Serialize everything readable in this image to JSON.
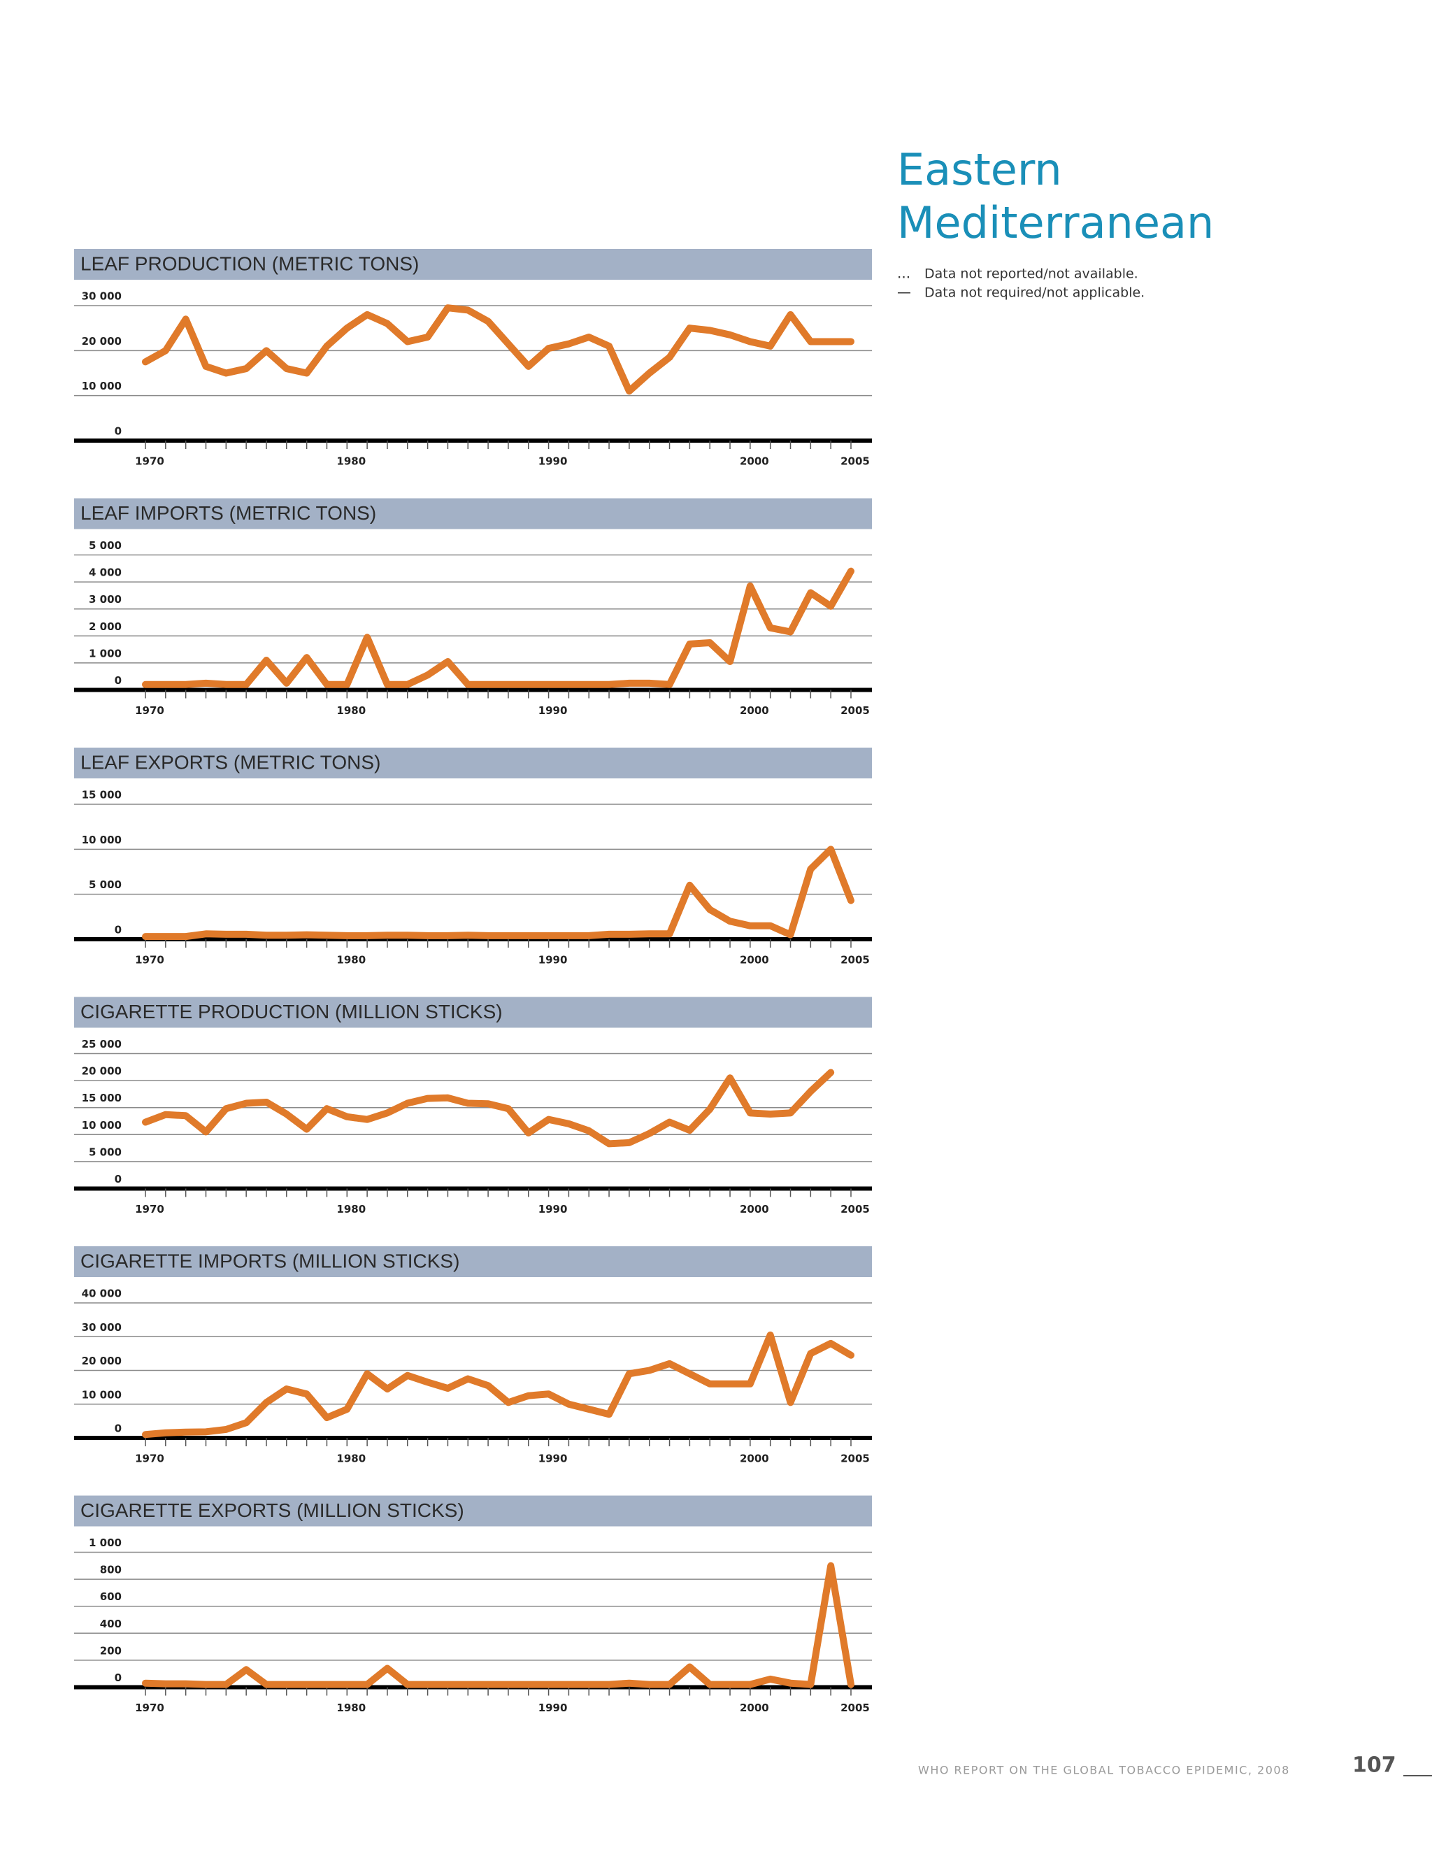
{
  "region_title": "Eastern Mediterranean",
  "notes": [
    {
      "symbol": "...",
      "text": "Data not reported/not available."
    },
    {
      "symbol": "—",
      "text": "Data not required/not applicable."
    }
  ],
  "footer": {
    "text": "WHO REPORT ON THE GLOBAL TOBACCO EPIDEMIC, 2008",
    "page_number": 107
  },
  "chart_data": [
    {
      "type": "line",
      "title": "LEAF PRODUCTION (METRIC TONS)",
      "color": "#e07a2a",
      "x": [
        1970,
        1971,
        1972,
        1973,
        1974,
        1975,
        1976,
        1977,
        1978,
        1979,
        1980,
        1981,
        1982,
        1983,
        1984,
        1985,
        1986,
        1987,
        1988,
        1989,
        1990,
        1991,
        1992,
        1993,
        1994,
        1995,
        1996,
        1997,
        1998,
        1999,
        2000,
        2001,
        2002,
        2003,
        2004,
        2005
      ],
      "values": [
        17500,
        20000,
        27000,
        16500,
        15000,
        16000,
        20000,
        16000,
        15000,
        21000,
        25000,
        28000,
        26000,
        22000,
        23000,
        29500,
        29000,
        26500,
        21500,
        16500,
        20500,
        21500,
        23000,
        21000,
        11000,
        15000,
        18500,
        25000,
        24500,
        23500,
        22000,
        21000,
        28000,
        22000,
        22000,
        22000
      ],
      "xlim": [
        1970,
        2005
      ],
      "xticks": [
        1970,
        1980,
        1990,
        2000,
        2005
      ],
      "ylim": [
        0,
        30000
      ],
      "yticks": [
        0,
        {
          "value": 10000,
          "label": "10 000"
        },
        {
          "value": 20000,
          "label": "20 000"
        },
        {
          "value": 30000,
          "label": "30 000"
        }
      ],
      "grid": true
    },
    {
      "type": "line",
      "title": "LEAF IMPORTS (METRIC TONS)",
      "color": "#e07a2a",
      "x": [
        1970,
        1971,
        1972,
        1973,
        1974,
        1975,
        1976,
        1977,
        1978,
        1979,
        1980,
        1981,
        1982,
        1983,
        1984,
        1985,
        1986,
        1987,
        1988,
        1989,
        1990,
        1991,
        1992,
        1993,
        1994,
        1995,
        1996,
        1997,
        1998,
        1999,
        2000,
        2001,
        2002,
        2003,
        2004,
        2005
      ],
      "values": [
        200,
        200,
        200,
        250,
        200,
        200,
        1100,
        250,
        1200,
        200,
        200,
        1950,
        200,
        200,
        550,
        1050,
        200,
        200,
        200,
        200,
        200,
        200,
        200,
        200,
        250,
        250,
        200,
        1700,
        1750,
        1050,
        3850,
        2300,
        2150,
        3600,
        3100,
        4400
      ],
      "xlim": [
        1970,
        2005
      ],
      "xticks": [
        1970,
        1980,
        1990,
        2000,
        2005
      ],
      "ylim": [
        0,
        5000
      ],
      "yticks": [
        0,
        {
          "value": 1000,
          "label": "1 000"
        },
        {
          "value": 2000,
          "label": "2 000"
        },
        {
          "value": 3000,
          "label": "3 000"
        },
        {
          "value": 4000,
          "label": "4 000"
        },
        {
          "value": 5000,
          "label": "5 000"
        }
      ],
      "grid": true
    },
    {
      "type": "line",
      "title": "LEAF EXPORTS (METRIC TONS)",
      "color": "#e07a2a",
      "x": [
        1970,
        1971,
        1972,
        1973,
        1974,
        1975,
        1976,
        1977,
        1978,
        1979,
        1980,
        1981,
        1982,
        1983,
        1984,
        1985,
        1986,
        1987,
        1988,
        1989,
        1990,
        1991,
        1992,
        1993,
        1994,
        1995,
        1996,
        1997,
        1998,
        1999,
        2000,
        2001,
        2002,
        2003,
        2004,
        2005
      ],
      "values": [
        300,
        300,
        300,
        600,
        550,
        550,
        450,
        450,
        500,
        450,
        400,
        400,
        450,
        450,
        400,
        400,
        450,
        400,
        400,
        400,
        400,
        400,
        400,
        550,
        550,
        600,
        600,
        6000,
        3300,
        2000,
        1500,
        1500,
        500,
        7800,
        10000,
        4300
      ],
      "xlim": [
        1970,
        2005
      ],
      "xticks": [
        1970,
        1980,
        1990,
        2000,
        2005
      ],
      "ylim": [
        0,
        15000
      ],
      "yticks": [
        0,
        {
          "value": 5000,
          "label": "5 000"
        },
        {
          "value": 10000,
          "label": "10 000"
        },
        {
          "value": 15000,
          "label": "15 000"
        }
      ],
      "grid": true
    },
    {
      "type": "line",
      "title": "CIGARETTE PRODUCTION (MILLION STICKS)",
      "color": "#e07a2a",
      "x": [
        1970,
        1971,
        1972,
        1973,
        1974,
        1975,
        1976,
        1977,
        1978,
        1979,
        1980,
        1981,
        1982,
        1983,
        1984,
        1985,
        1986,
        1987,
        1988,
        1989,
        1990,
        1991,
        1992,
        1993,
        1994,
        1995,
        1996,
        1997,
        1998,
        1999,
        2000,
        2001,
        2002,
        2003,
        2004,
        2005
      ],
      "values": [
        12300,
        13700,
        13500,
        10500,
        14800,
        15800,
        16000,
        13800,
        11000,
        14800,
        13300,
        12800,
        14000,
        15800,
        16700,
        16800,
        15800,
        15700,
        14800,
        10300,
        12800,
        12000,
        10700,
        8300,
        8500,
        10200,
        12300,
        10800,
        14700,
        20500,
        14000,
        13800,
        14000,
        18000,
        21500,
        null
      ],
      "xlim": [
        1970,
        2005
      ],
      "xticks": [
        1970,
        1980,
        1990,
        2000,
        2005
      ],
      "ylim": [
        0,
        25000
      ],
      "yticks": [
        0,
        {
          "value": 5000,
          "label": "5 000"
        },
        {
          "value": 10000,
          "label": "10 000"
        },
        {
          "value": 15000,
          "label": "15 000"
        },
        {
          "value": 20000,
          "label": "20 000"
        },
        {
          "value": 25000,
          "label": "25 000"
        }
      ],
      "grid": true
    },
    {
      "type": "line",
      "title": "CIGARETTE IMPORTS (MILLION STICKS)",
      "color": "#e07a2a",
      "x": [
        1970,
        1971,
        1972,
        1973,
        1974,
        1975,
        1976,
        1977,
        1978,
        1979,
        1980,
        1981,
        1982,
        1983,
        1984,
        1985,
        1986,
        1987,
        1988,
        1989,
        1990,
        1991,
        1992,
        1993,
        1994,
        1995,
        1996,
        1997,
        1998,
        1999,
        2000,
        2001,
        2002,
        2003,
        2004,
        2005
      ],
      "values": [
        1000,
        1500,
        1700,
        1800,
        2500,
        4500,
        10500,
        14500,
        13000,
        6000,
        8500,
        19000,
        14500,
        18500,
        16500,
        14700,
        17500,
        15500,
        10500,
        12500,
        13000,
        10000,
        8500,
        7000,
        19000,
        20000,
        22000,
        19000,
        16000,
        16000,
        16000,
        30500,
        10500,
        25000,
        28000,
        24500
      ],
      "xlim": [
        1970,
        2005
      ],
      "xticks": [
        1970,
        1980,
        1990,
        2000,
        2005
      ],
      "ylim": [
        0,
        40000
      ],
      "yticks": [
        0,
        {
          "value": 10000,
          "label": "10 000"
        },
        {
          "value": 20000,
          "label": "20 000"
        },
        {
          "value": 30000,
          "label": "30 000"
        },
        {
          "value": 40000,
          "label": "40 000"
        }
      ],
      "grid": true
    },
    {
      "type": "line",
      "title": "CIGARETTE EXPORTS (MILLION STICKS)",
      "color": "#e07a2a",
      "x": [
        1970,
        1971,
        1972,
        1973,
        1974,
        1975,
        1976,
        1977,
        1978,
        1979,
        1980,
        1981,
        1982,
        1983,
        1984,
        1985,
        1986,
        1987,
        1988,
        1989,
        1990,
        1991,
        1992,
        1993,
        1994,
        1995,
        1996,
        1997,
        1998,
        1999,
        2000,
        2001,
        2002,
        2003,
        2004,
        2005
      ],
      "values": [
        30,
        25,
        25,
        20,
        20,
        130,
        20,
        20,
        20,
        20,
        20,
        20,
        140,
        20,
        20,
        20,
        20,
        20,
        20,
        20,
        20,
        20,
        20,
        20,
        30,
        20,
        20,
        150,
        20,
        20,
        20,
        60,
        30,
        20,
        900,
        20
      ],
      "xlim": [
        1970,
        2005
      ],
      "xticks": [
        1970,
        1980,
        1990,
        2000,
        2005
      ],
      "ylim": [
        0,
        1000
      ],
      "yticks": [
        0,
        {
          "value": 200,
          "label": "200"
        },
        {
          "value": 400,
          "label": "400"
        },
        {
          "value": 600,
          "label": "600"
        },
        {
          "value": 800,
          "label": "800"
        },
        {
          "value": 1000,
          "label": "1 000"
        }
      ],
      "grid": true
    }
  ]
}
